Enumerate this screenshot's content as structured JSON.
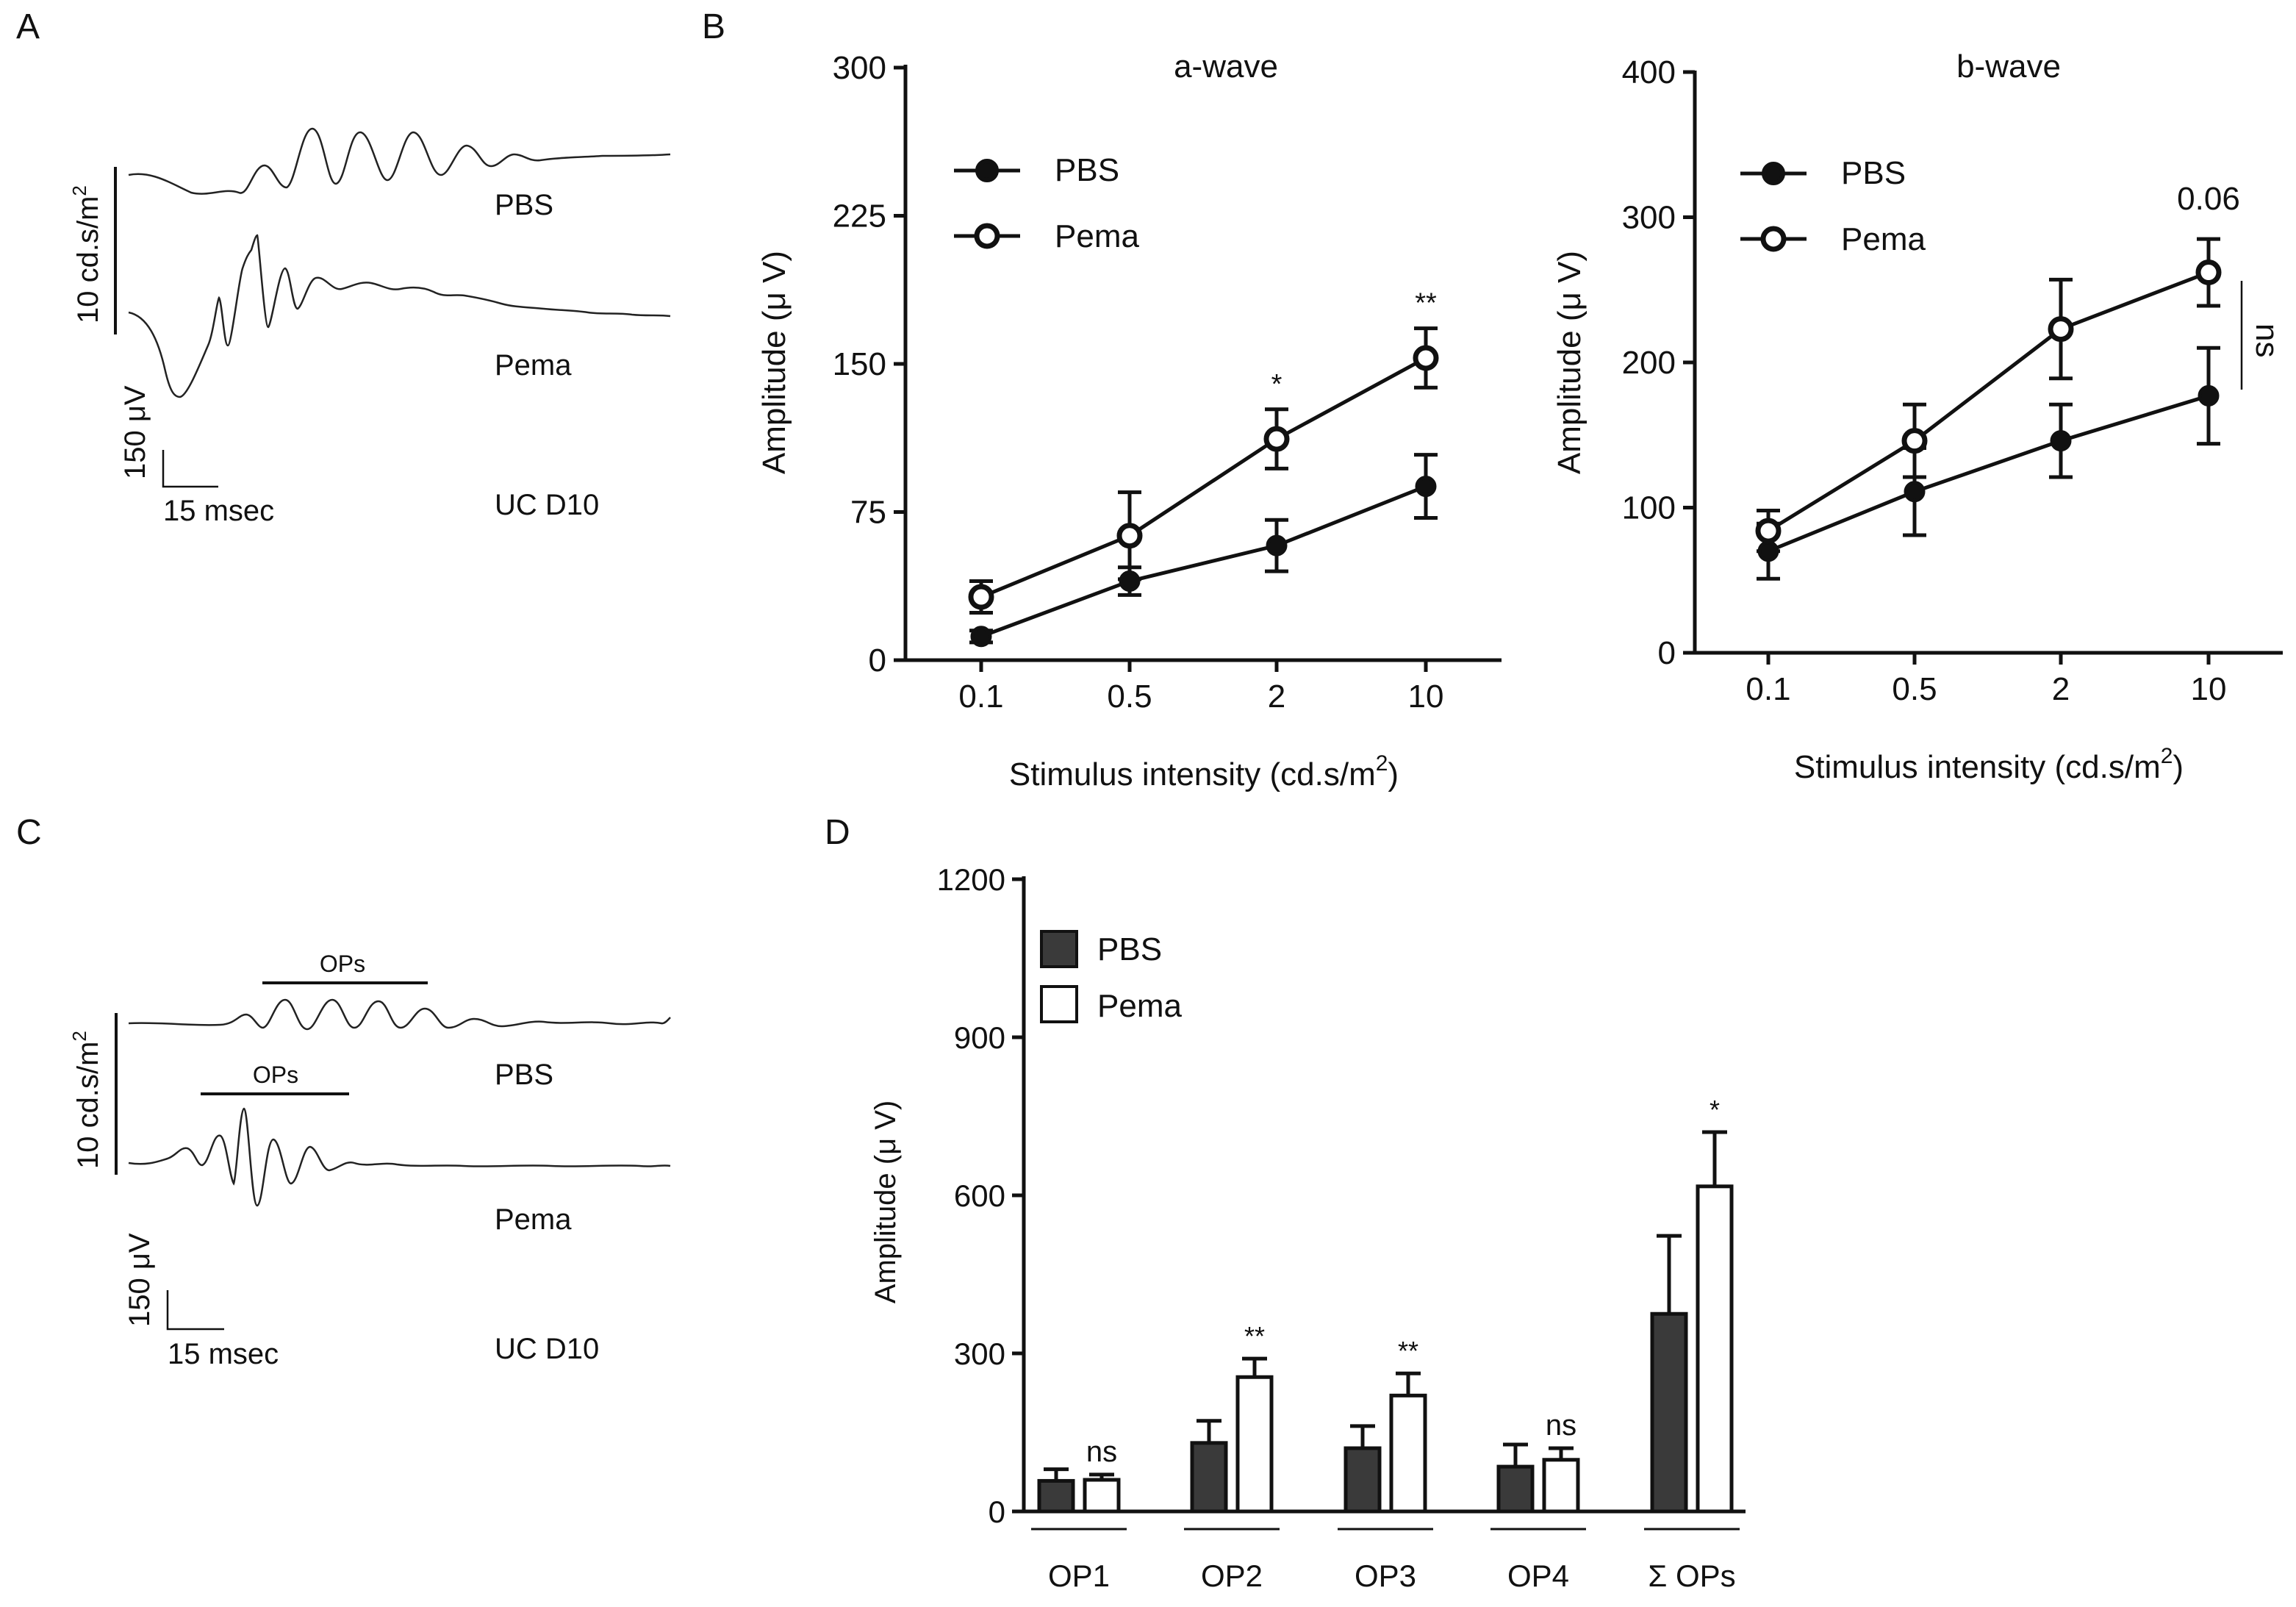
{
  "panels": {
    "A": {
      "letter": "A",
      "trace_labels": [
        "PBS",
        "Pema"
      ],
      "condition": "UC D10",
      "scale_intensity": "10 cd.s/m",
      "scale_intensity_sup": "2",
      "scale_voltage": "150 μV",
      "scale_time": "15 msec"
    },
    "B": {
      "letter": "B"
    },
    "C": {
      "letter": "C",
      "trace_labels": [
        "PBS",
        "Pema"
      ],
      "ops_label_top": "OPs",
      "ops_label_bottom": "OPs",
      "condition": "UC D10",
      "scale_intensity": "10 cd.s/m",
      "scale_intensity_sup": "2",
      "scale_voltage": "150 μV",
      "scale_time": "15 msec"
    },
    "D": {
      "letter": "D"
    }
  },
  "chart_data": [
    {
      "id": "a-wave",
      "type": "line",
      "title": "a-wave",
      "ylabel": "Amplitude (μ V)",
      "xlabel": "Stimulus intensity (cd.s/m",
      "xlabel_sup": "2",
      "xlabel_close": ")",
      "categories": [
        "0.1",
        "0.5",
        "2",
        "10"
      ],
      "ylim": [
        0,
        300
      ],
      "yticks": [
        0,
        75,
        150,
        225,
        300
      ],
      "series": [
        {
          "name": "PBS",
          "marker": "filled",
          "values": [
            12,
            40,
            58,
            88
          ],
          "errors": [
            3,
            7,
            13,
            16
          ]
        },
        {
          "name": "Pema",
          "marker": "open",
          "values": [
            32,
            63,
            112,
            153
          ],
          "errors": [
            8,
            22,
            15,
            15
          ]
        }
      ],
      "annotations": [
        {
          "category": "2",
          "text": "*"
        },
        {
          "category": "10",
          "text": "**"
        }
      ],
      "legend": "top-left"
    },
    {
      "id": "b-wave",
      "type": "line",
      "title": "b-wave",
      "ylabel": "Amplitude (μ V)",
      "xlabel": "Stimulus intensity (cd.s/m",
      "xlabel_sup": "2",
      "xlabel_close": ")",
      "categories": [
        "0.1",
        "0.5",
        "2",
        "10"
      ],
      "ylim": [
        0,
        400
      ],
      "yticks": [
        0,
        100,
        200,
        300,
        400
      ],
      "series": [
        {
          "name": "PBS",
          "marker": "filled",
          "values": [
            70,
            111,
            146,
            177
          ],
          "errors": [
            19,
            30,
            25,
            33
          ]
        },
        {
          "name": "Pema",
          "marker": "open",
          "values": [
            84,
            146,
            223,
            262
          ],
          "errors": [
            14,
            25,
            34,
            23
          ]
        }
      ],
      "annotations": [
        {
          "category": "10",
          "text": "0.06"
        }
      ],
      "side_annotation": "ns",
      "legend": "top-left"
    },
    {
      "id": "ops",
      "type": "bar",
      "ylabel": "Amplitude (μ V)",
      "categories": [
        "OP1",
        "OP2",
        "OP3",
        "OP4",
        "Σ OPs"
      ],
      "ylim": [
        0,
        1200
      ],
      "yticks": [
        0,
        300,
        600,
        900,
        1200
      ],
      "series": [
        {
          "name": "PBS",
          "color": "#3a3a3a",
          "values": [
            58,
            130,
            120,
            85,
            375
          ],
          "errors": [
            22,
            42,
            42,
            42,
            148
          ]
        },
        {
          "name": "Pema",
          "color": "#ffffff",
          "values": [
            60,
            255,
            220,
            98,
            617
          ],
          "errors": [
            10,
            35,
            42,
            22,
            103
          ]
        }
      ],
      "annotations": [
        "ns",
        "**",
        "**",
        "ns",
        "*"
      ],
      "legend": "top-left"
    }
  ]
}
